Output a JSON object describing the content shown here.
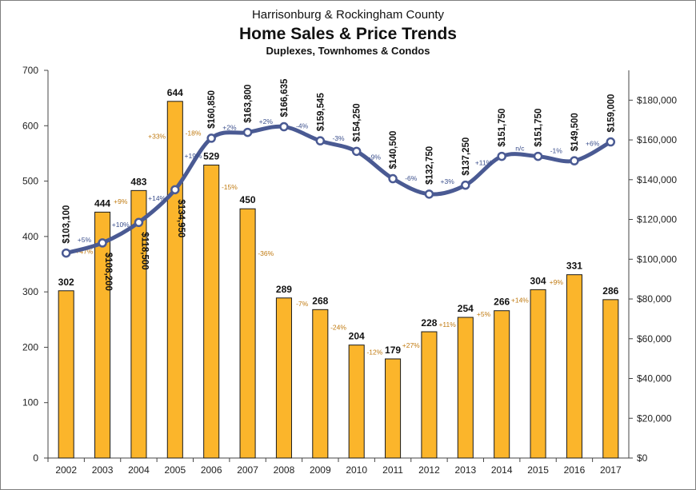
{
  "chart_data": {
    "type": "bar+line",
    "title": "Harrisonburg & Rockingham County",
    "subtitle": "Home Sales & Price Trends",
    "subtitle2": "Duplexes, Townhomes & Condos",
    "categories": [
      "2002",
      "2003",
      "2004",
      "2005",
      "2006",
      "2007",
      "2008",
      "2009",
      "2010",
      "2011",
      "2012",
      "2013",
      "2014",
      "2015",
      "2016",
      "2017"
    ],
    "series": [
      {
        "type": "bar",
        "axis": "left",
        "values": [
          302,
          444,
          483,
          644,
          529,
          450,
          289,
          268,
          204,
          179,
          228,
          254,
          266,
          304,
          331,
          286
        ],
        "changes": [
          "+47%",
          "+9%",
          "+33%",
          "-18%",
          "-15%",
          "-36%",
          "-7%",
          "-24%",
          "-12%",
          "+27%",
          "+11%",
          "+5%",
          "+14%",
          "+9%",
          "",
          ""
        ]
      },
      {
        "type": "line",
        "axis": "right",
        "values": [
          103100,
          108200,
          118500,
          134950,
          160850,
          163800,
          166635,
          159545,
          154250,
          140500,
          132750,
          137250,
          151750,
          151750,
          149500,
          159000
        ],
        "labels": [
          "$103,100",
          "$108,200",
          "$118,500",
          "$134,950",
          "$160,850",
          "$163,800",
          "$166,635",
          "$159,545",
          "$154,250",
          "$140,500",
          "$132,750",
          "$137,250",
          "$151,750",
          "$151,750",
          "$149,500",
          "$159,000"
        ],
        "changes": [
          "+5%",
          "+10%",
          "+14%",
          "+19%",
          "+2%",
          "+2%",
          "-4%",
          "-3%",
          "-9%",
          "-6%",
          "+3%",
          "+11%",
          "n/c",
          "-1%",
          "+6%"
        ]
      }
    ],
    "y_left": {
      "min": 0,
      "max": 700,
      "ticks": [
        "0",
        "100",
        "200",
        "300",
        "400",
        "500",
        "600",
        "700"
      ]
    },
    "y_right": {
      "min": 0,
      "max": 195000,
      "ticks": [
        "$0",
        "$20,000",
        "$40,000",
        "$60,000",
        "$80,000",
        "$100,000",
        "$120,000",
        "$140,000",
        "$160,000",
        "$180,000"
      ]
    },
    "colors": {
      "bar": "#FBB52B",
      "bar_edge": "#1a1a1a",
      "line": "#4A5A93",
      "marker_fill": "#ffffff",
      "pct_bar": "#c07a10",
      "pct_line": "#3b4f8c"
    },
    "grid": false,
    "legend": "none"
  }
}
